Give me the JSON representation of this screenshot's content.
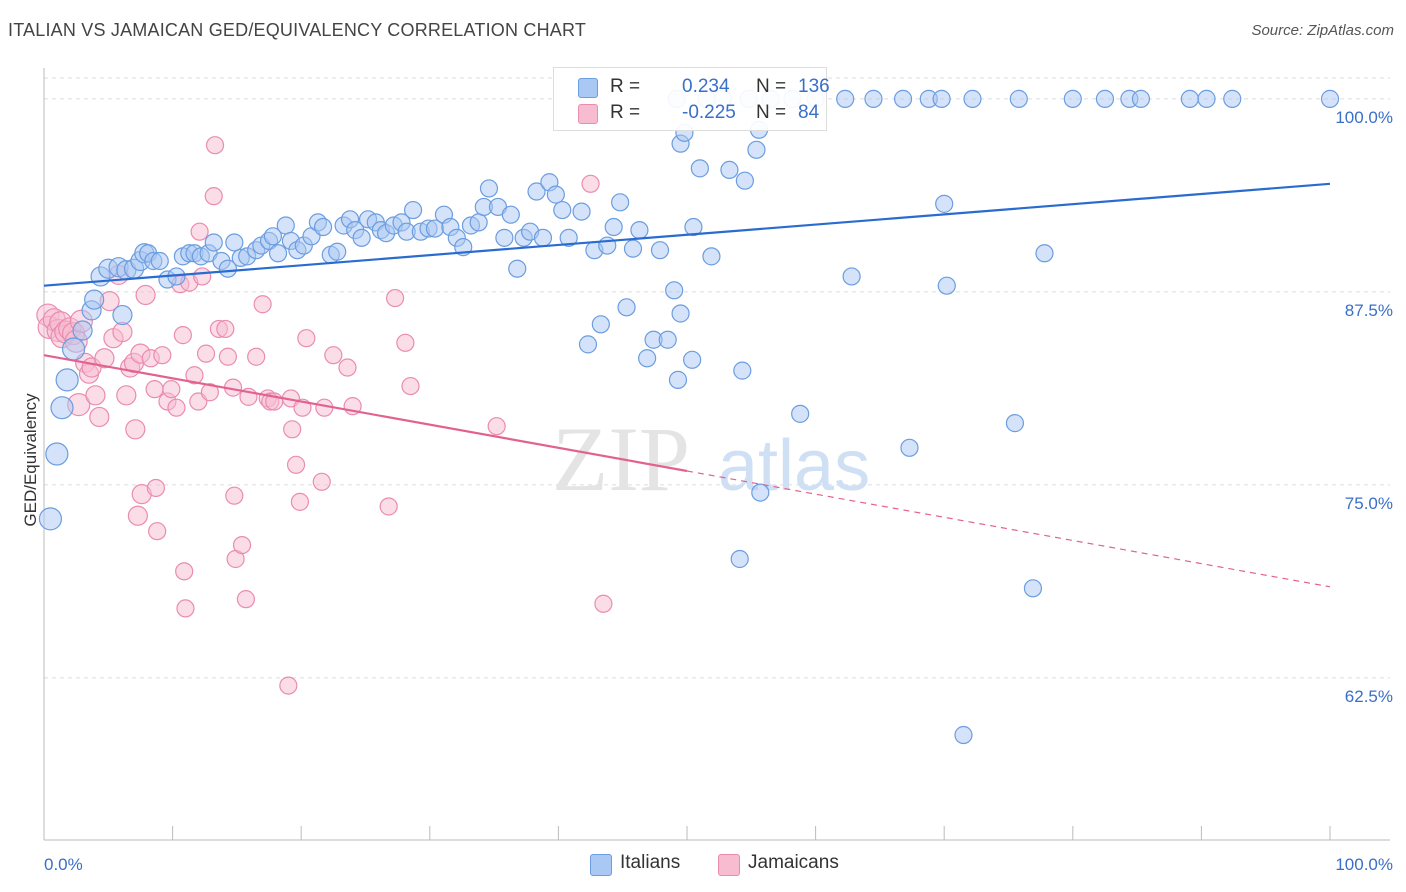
{
  "header": {
    "title": "ITALIAN VS JAMAICAN GED/EQUIVALENCY CORRELATION CHART",
    "source": "Source: ZipAtlas.com"
  },
  "watermark": {
    "part1": "ZIP",
    "part2": "atlas"
  },
  "legend": {
    "italians": {
      "r_label": "R =",
      "r_value": "0.234",
      "n_label": "N =",
      "n_value": "136"
    },
    "jamaicans": {
      "r_label": "R =",
      "r_value": "-0.225",
      "n_label": "N =",
      "n_value": "84"
    }
  },
  "bottom_legend": {
    "italians": "Italians",
    "jamaicans": "Jamaicans"
  },
  "colors": {
    "italians_fill": "#a9c8f3",
    "italians_stroke": "#6b9de0",
    "italians_line": "#2a6bd0",
    "jamaicans_fill": "#f7bcd0",
    "jamaicans_stroke": "#ea8cb0",
    "jamaicans_line": "#e2628f",
    "axis_label": "#3a6fc8",
    "grid": "#dcdcdc"
  },
  "chart_data": {
    "type": "scatter",
    "ylabel": "GED/Equivalency",
    "xlabel": "",
    "xlim": [
      0,
      100
    ],
    "ylim": [
      52,
      102
    ],
    "x_tick_labels": [
      "0.0%",
      "100.0%"
    ],
    "y_ticks": [
      {
        "value": 100,
        "label": "100.0%"
      },
      {
        "value": 87.5,
        "label": "87.5%"
      },
      {
        "value": 75,
        "label": "75.0%"
      },
      {
        "value": 62.5,
        "label": "62.5%"
      }
    ],
    "grid": true,
    "series": [
      {
        "name": "Italians",
        "trend": {
          "x0": 0,
          "y0": 87.9,
          "x1": 100,
          "y1": 94.5,
          "dashed_from": null
        },
        "points": [
          [
            0.5,
            72.8
          ],
          [
            1,
            77
          ],
          [
            1.4,
            80
          ],
          [
            1.8,
            81.8
          ],
          [
            2.3,
            83.8
          ],
          [
            3,
            85
          ],
          [
            3.7,
            86.3
          ],
          [
            3.9,
            87
          ],
          [
            4.4,
            88.5
          ],
          [
            5,
            89
          ],
          [
            5.8,
            89.1
          ],
          [
            6.1,
            86
          ],
          [
            6.4,
            88.9
          ],
          [
            7,
            89
          ],
          [
            7.5,
            89.5
          ],
          [
            7.8,
            90
          ],
          [
            8.1,
            90
          ],
          [
            8.5,
            89.5
          ],
          [
            9,
            89.5
          ],
          [
            9.6,
            88.3
          ],
          [
            10.3,
            88.5
          ],
          [
            10.8,
            89.8
          ],
          [
            11.3,
            90
          ],
          [
            11.7,
            90
          ],
          [
            12.2,
            89.8
          ],
          [
            12.8,
            90
          ],
          [
            13.2,
            90.7
          ],
          [
            13.8,
            89.5
          ],
          [
            14.3,
            89
          ],
          [
            14.8,
            90.7
          ],
          [
            15.3,
            89.7
          ],
          [
            15.8,
            89.8
          ],
          [
            16.5,
            90.2
          ],
          [
            16.9,
            90.5
          ],
          [
            17.5,
            90.8
          ],
          [
            17.8,
            91.1
          ],
          [
            18.2,
            90
          ],
          [
            18.8,
            91.8
          ],
          [
            19.2,
            90.8
          ],
          [
            19.7,
            90.2
          ],
          [
            20.2,
            90.5
          ],
          [
            20.8,
            91.1
          ],
          [
            21.3,
            92
          ],
          [
            21.7,
            91.7
          ],
          [
            22.3,
            89.9
          ],
          [
            22.8,
            90.1
          ],
          [
            23.3,
            91.8
          ],
          [
            23.8,
            92.2
          ],
          [
            24.2,
            91.5
          ],
          [
            24.7,
            91
          ],
          [
            25.2,
            92.2
          ],
          [
            25.8,
            92
          ],
          [
            26.2,
            91.5
          ],
          [
            26.6,
            91.3
          ],
          [
            27.2,
            91.8
          ],
          [
            27.8,
            92
          ],
          [
            28.2,
            91.4
          ],
          [
            28.7,
            92.8
          ],
          [
            29.3,
            91.4
          ],
          [
            29.9,
            91.6
          ],
          [
            30.4,
            91.6
          ],
          [
            31.1,
            92.5
          ],
          [
            31.6,
            91.7
          ],
          [
            32.1,
            91
          ],
          [
            32.6,
            90.4
          ],
          [
            33.2,
            91.8
          ],
          [
            33.8,
            92
          ],
          [
            34.2,
            93
          ],
          [
            34.6,
            94.2
          ],
          [
            35.3,
            93
          ],
          [
            35.8,
            91
          ],
          [
            36.3,
            92.5
          ],
          [
            36.8,
            89
          ],
          [
            37.3,
            91
          ],
          [
            37.8,
            91.4
          ],
          [
            38.3,
            94
          ],
          [
            38.8,
            91
          ],
          [
            39.3,
            94.6
          ],
          [
            39.8,
            93.8
          ],
          [
            40.3,
            92.8
          ],
          [
            40.8,
            91
          ],
          [
            41.8,
            92.7
          ],
          [
            42.3,
            84.1
          ],
          [
            42.8,
            90.2
          ],
          [
            43.3,
            85.4
          ],
          [
            43.8,
            90.5
          ],
          [
            44.3,
            91.7
          ],
          [
            44.8,
            93.3
          ],
          [
            45.3,
            86.5
          ],
          [
            45.8,
            90.3
          ],
          [
            46.3,
            91.5
          ],
          [
            46.9,
            83.2
          ],
          [
            47.4,
            84.4
          ],
          [
            47.9,
            90.2
          ],
          [
            48.5,
            84.4
          ],
          [
            49,
            87.6
          ],
          [
            49.5,
            97.1
          ],
          [
            49.8,
            97.8
          ],
          [
            51,
            95.5
          ],
          [
            49.2,
            100
          ],
          [
            51.5,
            100
          ],
          [
            52.8,
            100
          ],
          [
            54.8,
            100
          ],
          [
            56.5,
            100
          ],
          [
            58.2,
            100
          ],
          [
            60,
            100
          ],
          [
            62.3,
            100
          ],
          [
            64.5,
            100
          ],
          [
            66.8,
            100
          ],
          [
            68.8,
            100
          ],
          [
            69.8,
            100
          ],
          [
            72.2,
            100
          ],
          [
            75.8,
            100
          ],
          [
            80,
            100
          ],
          [
            82.5,
            100
          ],
          [
            84.4,
            100
          ],
          [
            85.3,
            100
          ],
          [
            89.1,
            100
          ],
          [
            90.4,
            100
          ],
          [
            92.4,
            100
          ],
          [
            100,
            100
          ],
          [
            50.5,
            91.7
          ],
          [
            51.9,
            89.8
          ],
          [
            53.3,
            95.4
          ],
          [
            54.5,
            94.7
          ],
          [
            55.4,
            96.7
          ],
          [
            55.6,
            98
          ],
          [
            49.3,
            81.8
          ],
          [
            49.5,
            86.1
          ],
          [
            50.4,
            83.1
          ],
          [
            54.3,
            82.4
          ],
          [
            58.8,
            79.6
          ],
          [
            55.7,
            74.5
          ],
          [
            54.1,
            70.2
          ],
          [
            62.8,
            88.5
          ],
          [
            70,
            93.2
          ],
          [
            70.2,
            87.9
          ],
          [
            77.8,
            90
          ],
          [
            75.5,
            79
          ],
          [
            67.3,
            77.4
          ],
          [
            76.9,
            68.3
          ],
          [
            71.5,
            58.8
          ]
        ]
      },
      {
        "name": "Jamaicans",
        "trend": {
          "x0": 0,
          "y0": 83.4,
          "x1": 100,
          "y1": 68.4,
          "dashed_from": 50
        },
        "points": [
          [
            0.3,
            86
          ],
          [
            0.4,
            85.2
          ],
          [
            0.8,
            85.7
          ],
          [
            1.1,
            85
          ],
          [
            1.3,
            85.5
          ],
          [
            1.4,
            84.6
          ],
          [
            1.7,
            84.9
          ],
          [
            2,
            85.1
          ],
          [
            2.3,
            84.8
          ],
          [
            2.5,
            84.3
          ],
          [
            2.7,
            80.2
          ],
          [
            2.9,
            85.6
          ],
          [
            3.2,
            82.9
          ],
          [
            3.5,
            82.2
          ],
          [
            3.7,
            82.6
          ],
          [
            4,
            80.8
          ],
          [
            4.3,
            79.4
          ],
          [
            4.7,
            83.2
          ],
          [
            5.1,
            86.9
          ],
          [
            5.4,
            84.5
          ],
          [
            5.8,
            88.6
          ],
          [
            6.1,
            84.9
          ],
          [
            6.4,
            80.8
          ],
          [
            6.7,
            82.6
          ],
          [
            7,
            82.9
          ],
          [
            7.1,
            78.6
          ],
          [
            7.3,
            73
          ],
          [
            7.5,
            83.5
          ],
          [
            7.6,
            74.4
          ],
          [
            7.9,
            87.3
          ],
          [
            8.3,
            83.2
          ],
          [
            8.6,
            81.2
          ],
          [
            8.7,
            74.8
          ],
          [
            8.8,
            72
          ],
          [
            9.2,
            83.4
          ],
          [
            9.6,
            80.4
          ],
          [
            9.9,
            81.2
          ],
          [
            10.3,
            80
          ],
          [
            10.6,
            88
          ],
          [
            10.8,
            84.7
          ],
          [
            10.9,
            69.4
          ],
          [
            11,
            67
          ],
          [
            11.3,
            88.1
          ],
          [
            11.7,
            82.1
          ],
          [
            12,
            80.4
          ],
          [
            12.1,
            91.4
          ],
          [
            12.3,
            88.5
          ],
          [
            12.6,
            83.5
          ],
          [
            12.9,
            81
          ],
          [
            13.2,
            93.7
          ],
          [
            13.3,
            97
          ],
          [
            13.6,
            85.1
          ],
          [
            14.1,
            85.1
          ],
          [
            14.3,
            83.3
          ],
          [
            14.7,
            81.3
          ],
          [
            14.8,
            74.3
          ],
          [
            14.9,
            70.2
          ],
          [
            15.4,
            71.1
          ],
          [
            15.7,
            67.6
          ],
          [
            15.9,
            80.7
          ],
          [
            16.5,
            83.3
          ],
          [
            17,
            86.7
          ],
          [
            17.4,
            80.6
          ],
          [
            17.6,
            80.4
          ],
          [
            17.9,
            80.4
          ],
          [
            19.2,
            80.6
          ],
          [
            19.3,
            78.6
          ],
          [
            19.6,
            76.3
          ],
          [
            19.9,
            73.9
          ],
          [
            20.1,
            80
          ],
          [
            20.4,
            84.5
          ],
          [
            21.6,
            75.2
          ],
          [
            21.8,
            80
          ],
          [
            22.5,
            83.4
          ],
          [
            23.6,
            82.6
          ],
          [
            24,
            80.1
          ],
          [
            26.8,
            73.6
          ],
          [
            27.3,
            87.1
          ],
          [
            28.1,
            84.2
          ],
          [
            28.5,
            81.4
          ],
          [
            35.2,
            78.8
          ],
          [
            42.5,
            94.5
          ],
          [
            43.5,
            67.3
          ],
          [
            19,
            62
          ]
        ]
      }
    ]
  }
}
